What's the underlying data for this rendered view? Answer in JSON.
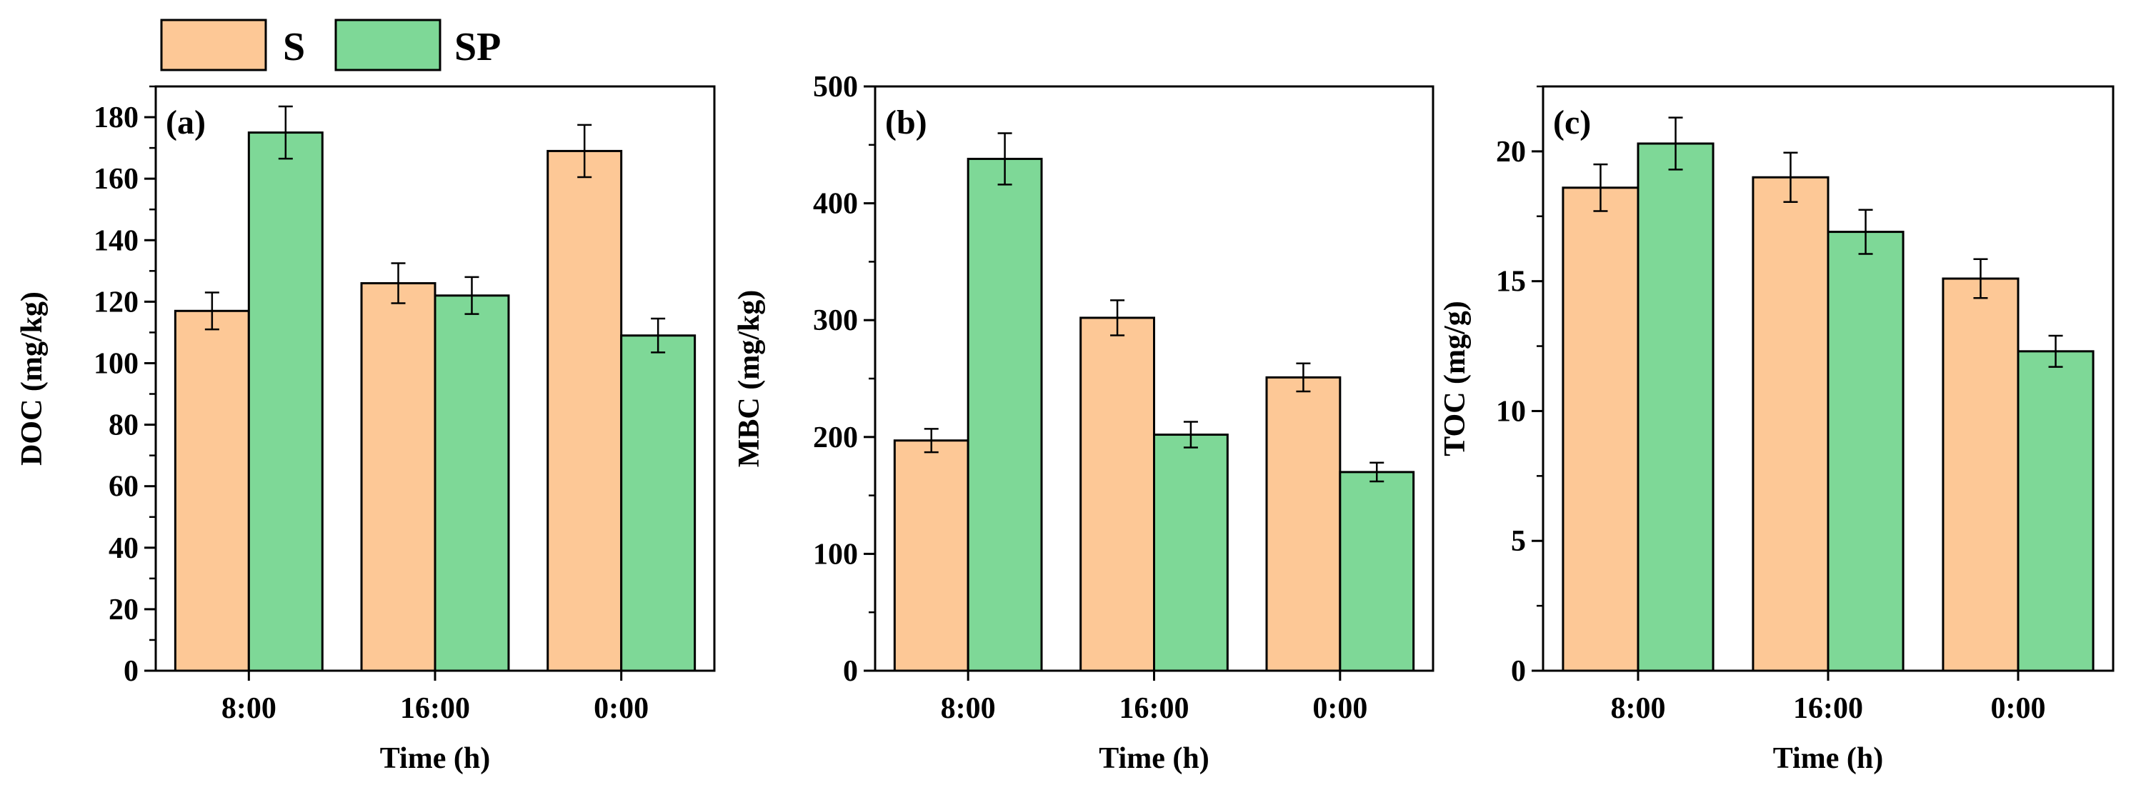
{
  "legend": [
    {
      "label": "S",
      "color": "#FDC896"
    },
    {
      "label": "SP",
      "color": "#7ED897"
    }
  ],
  "chart_data": [
    {
      "type": "bar",
      "panel": "(a)",
      "categories": [
        "8:00",
        "16:00",
        "0:00"
      ],
      "xlabel": "Time (h)",
      "ylabel": "DOC (mg/kg)",
      "ylim": [
        0,
        190
      ],
      "yticks": [
        0,
        20,
        40,
        60,
        80,
        100,
        120,
        140,
        160,
        180
      ],
      "minor_step": 10,
      "series": [
        {
          "name": "S",
          "values": [
            117,
            126,
            169
          ],
          "errors": [
            6,
            6.5,
            8.5
          ]
        },
        {
          "name": "SP",
          "values": [
            175,
            122,
            109
          ],
          "errors": [
            8.5,
            6,
            5.5
          ]
        }
      ]
    },
    {
      "type": "bar",
      "panel": "(b)",
      "categories": [
        "8:00",
        "16:00",
        "0:00"
      ],
      "xlabel": "Time (h)",
      "ylabel": "MBC (mg/kg)",
      "ylim": [
        0,
        500
      ],
      "yticks": [
        0,
        100,
        200,
        300,
        400,
        500
      ],
      "minor_step": 50,
      "series": [
        {
          "name": "S",
          "values": [
            197,
            302,
            251
          ],
          "errors": [
            10,
            15,
            12
          ]
        },
        {
          "name": "SP",
          "values": [
            438,
            202,
            170
          ],
          "errors": [
            22,
            11,
            8
          ]
        }
      ]
    },
    {
      "type": "bar",
      "panel": "(c)",
      "categories": [
        "8:00",
        "16:00",
        "0:00"
      ],
      "xlabel": "Time (h)",
      "ylabel": "TOC (mg/g)",
      "ylim": [
        0,
        22.5
      ],
      "yticks": [
        0,
        5,
        10,
        15,
        20
      ],
      "minor_step": 2.5,
      "series": [
        {
          "name": "S",
          "values": [
            18.6,
            19.0,
            15.1
          ],
          "errors": [
            0.9,
            0.95,
            0.75
          ]
        },
        {
          "name": "SP",
          "values": [
            20.3,
            16.9,
            12.3
          ],
          "errors": [
            1.0,
            0.85,
            0.6
          ]
        }
      ]
    }
  ]
}
